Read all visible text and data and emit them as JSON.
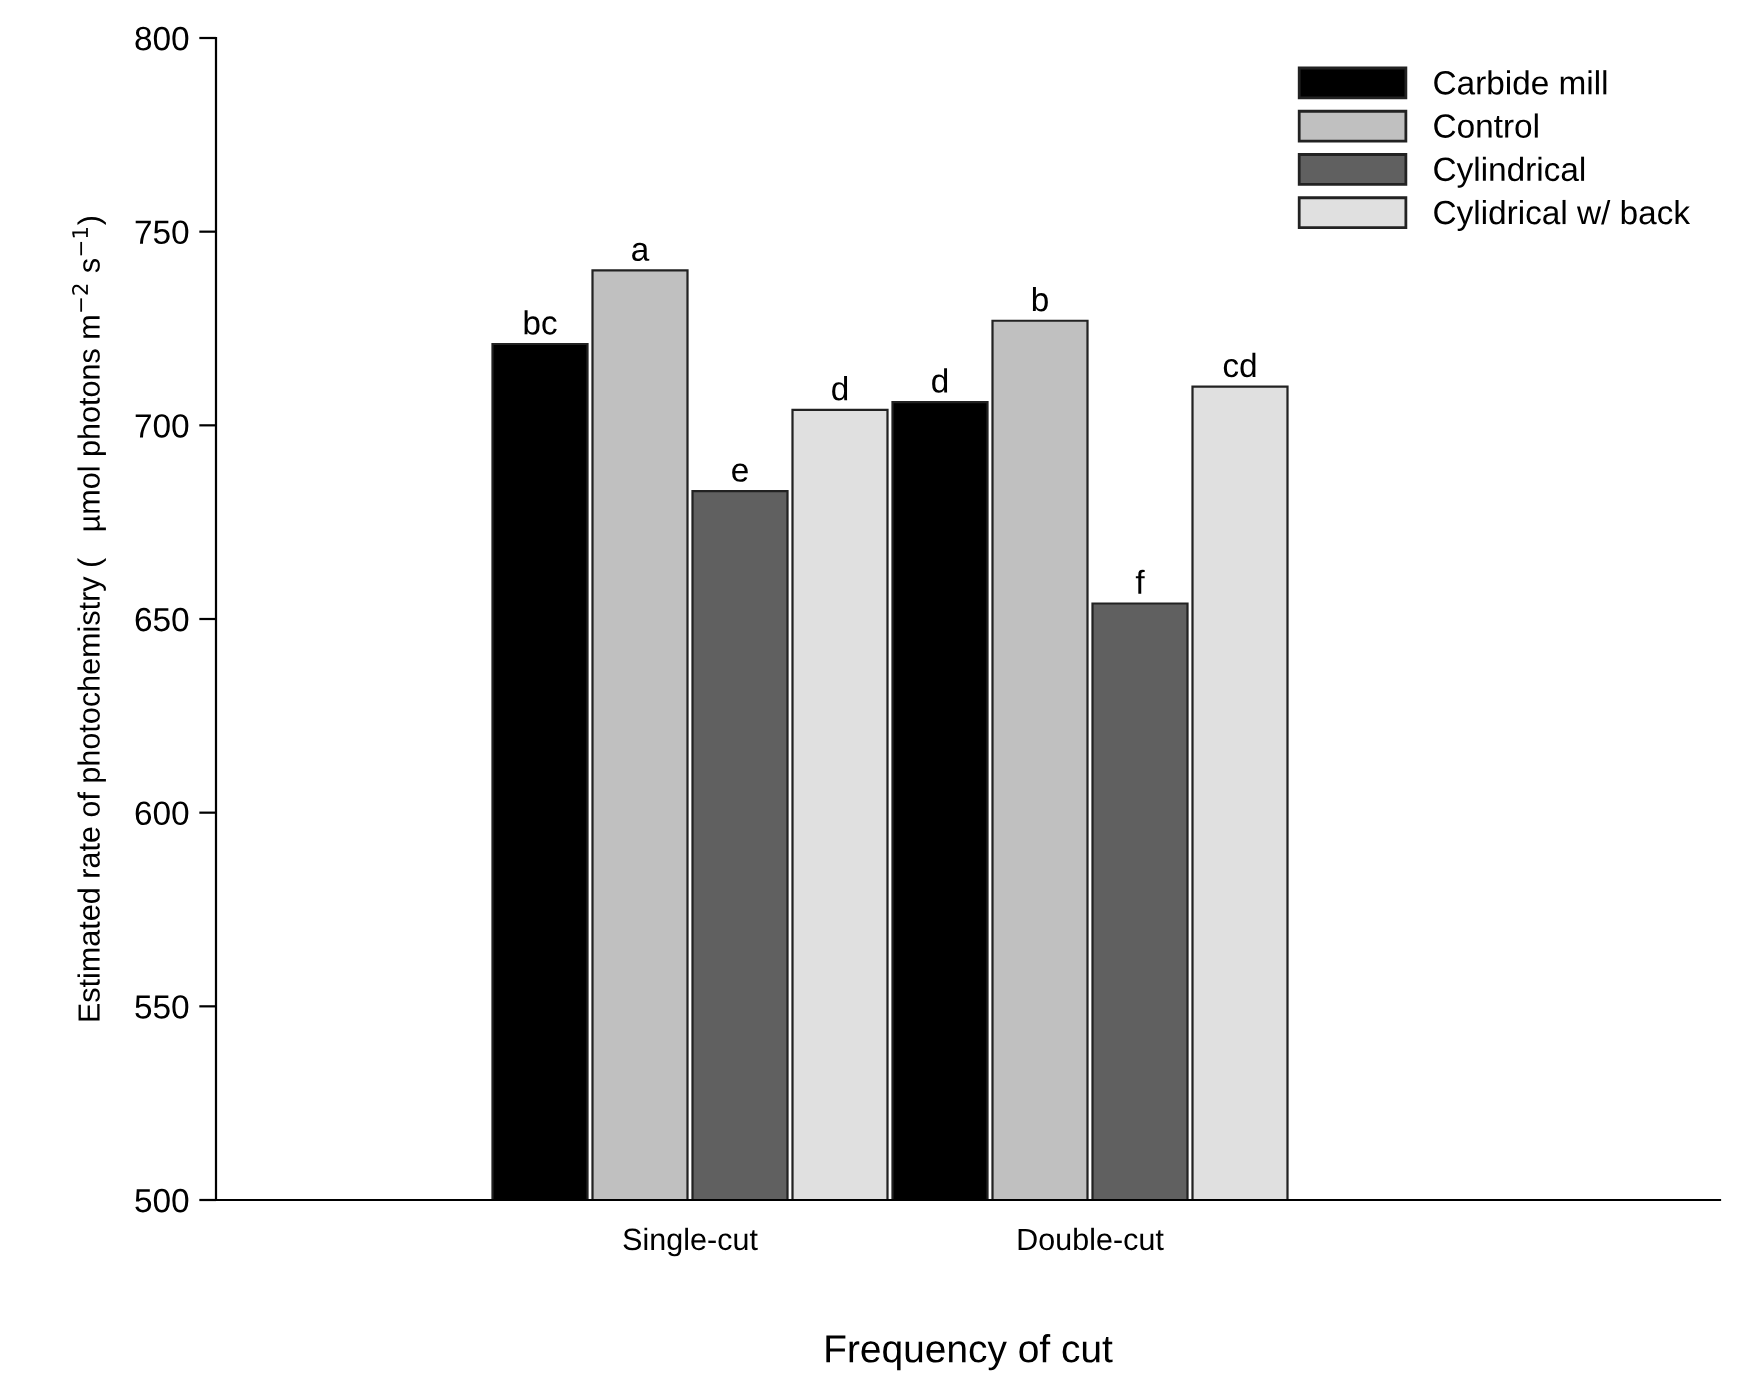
{
  "chart_data": {
    "type": "bar",
    "categories": [
      "Single-cut",
      "Double-cut"
    ],
    "xlabel": "Frequency of cut",
    "ylabel": "Estimated rate of photochemistry (   µmol photons m$^{−2}$ s$^{−1}$)",
    "series": [
      {
        "name": "Carbide mill",
        "color": "#000000",
        "values": [
          721,
          706
        ],
        "value_labels": [
          "bc",
          "d"
        ]
      },
      {
        "name": "Control",
        "color": "#c0c0c0",
        "values": [
          740,
          727
        ],
        "value_labels": [
          "a",
          "b"
        ]
      },
      {
        "name": "Cylindrical",
        "color": "#606060",
        "values": [
          683,
          654
        ],
        "value_labels": [
          "e",
          "f"
        ]
      },
      {
        "name": "Cylidrical w/ back",
        "color": "#e0e0e0",
        "values": [
          704,
          710
        ],
        "value_labels": [
          "d",
          "cd"
        ]
      }
    ],
    "ylim": [
      500,
      800
    ],
    "yticks": [
      500,
      550,
      600,
      650,
      700,
      750,
      800
    ],
    "grid": false,
    "legend": "top right"
  }
}
